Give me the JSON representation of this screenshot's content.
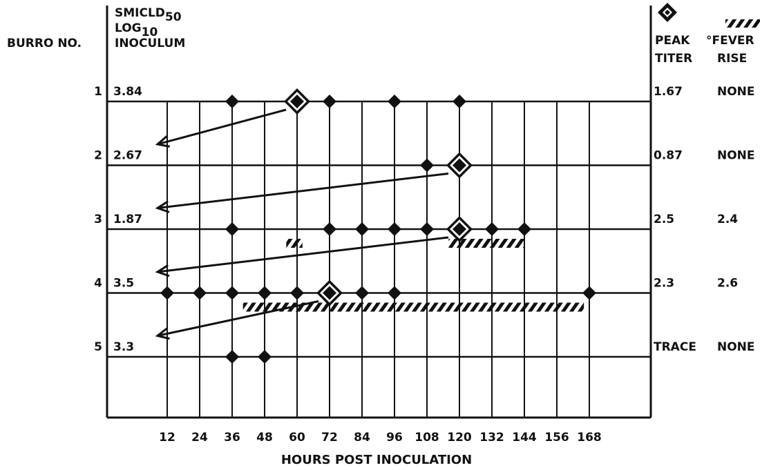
{
  "colors": {
    "ink": "#111111",
    "background": "#ffffff"
  },
  "labels": {
    "burro_col": "BURRO NO.",
    "inoc_line1": "SMICLD",
    "inoc_line1_sub": "50",
    "inoc_line2": "LOG",
    "inoc_line2_sub": "10",
    "inoc_line3": "INOCULUM",
    "peak_line1": "PEAK",
    "peak_line2": "TITER",
    "fever_line1": "°FEVER",
    "fever_line2": "RISE",
    "xlabel": "HOURS POST INOCULATION"
  },
  "chart_data": {
    "type": "scatter",
    "xlabel": "HOURS POST INOCULATION",
    "x_ticks": [
      12,
      24,
      36,
      48,
      60,
      72,
      84,
      96,
      108,
      120,
      132,
      144,
      156,
      168
    ],
    "xlim": [
      0,
      168
    ],
    "grid": true,
    "legend": [
      "filled diamond = virus isolation, outlined diamond = peak titer",
      "hatched band = fever"
    ],
    "rows": [
      {
        "burro": "1",
        "inoculum": "3.84",
        "peak_titer": "1.67",
        "fever_rise": "NONE",
        "points": [
          36,
          72,
          96,
          120
        ],
        "peak_hour": 60,
        "fever": []
      },
      {
        "burro": "2",
        "inoculum": "2.67",
        "peak_titer": "0.87",
        "fever_rise": "NONE",
        "points": [
          108
        ],
        "peak_hour": 120,
        "fever": []
      },
      {
        "burro": "3",
        "inoculum": "1.87",
        "peak_titer": "2.5",
        "fever_rise": "2.4",
        "points": [
          36,
          72,
          84,
          96,
          108,
          132,
          144
        ],
        "peak_hour": 120,
        "fever": [
          [
            56,
            62
          ],
          [
            116,
            144
          ]
        ]
      },
      {
        "burro": "4",
        "inoculum": "3.5",
        "peak_titer": "2.3",
        "fever_rise": "2.6",
        "points": [
          12,
          24,
          36,
          48,
          60,
          84,
          96,
          168
        ],
        "peak_hour": 72,
        "fever": [
          [
            40,
            166
          ]
        ]
      },
      {
        "burro": "5",
        "inoculum": "3.3",
        "peak_titer": "TRACE",
        "fever_rise": "NONE",
        "points": [
          36,
          48
        ],
        "peak_hour": null,
        "fever": []
      }
    ],
    "transfers": [
      {
        "from_burro": "1",
        "hour": 60,
        "to_burro": "2"
      },
      {
        "from_burro": "2",
        "hour": 120,
        "to_burro": "3"
      },
      {
        "from_burro": "3",
        "hour": 120,
        "to_burro": "4"
      },
      {
        "from_burro": "4",
        "hour": 72,
        "to_burro": "5"
      }
    ]
  }
}
